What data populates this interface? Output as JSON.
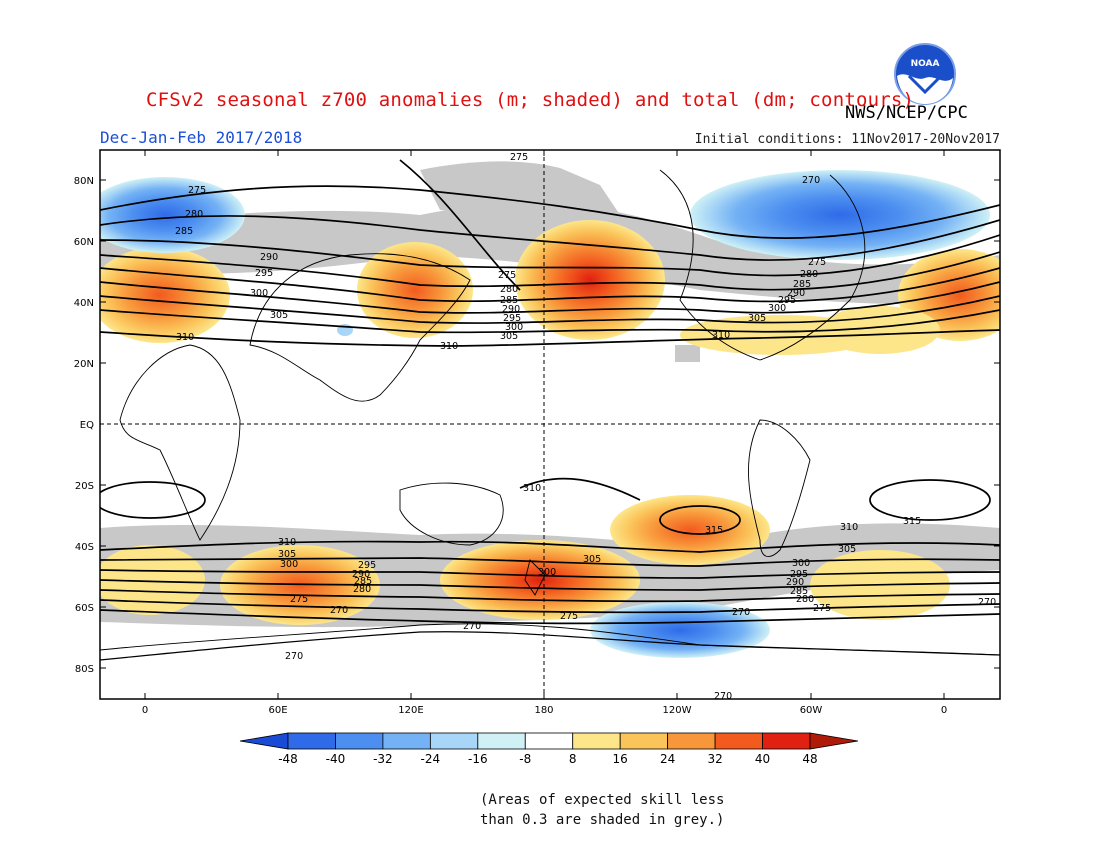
{
  "title": "CFSv2 seasonal z700 anomalies (m; shaded) and total (dm; contours)",
  "agency": "NWS/NCEP/CPC",
  "season": "Dec-Jan-Feb 2017/2018",
  "initial_conditions": "Initial conditions: 11Nov2017-20Nov2017",
  "logo_text": "NOAA",
  "lat_labels": [
    "80N",
    "60N",
    "40N",
    "20N",
    "EQ",
    "20S",
    "40S",
    "60S",
    "80S"
  ],
  "lon_labels": [
    "0",
    "60E",
    "120E",
    "180",
    "120W",
    "60W",
    "0"
  ],
  "contour_labels": [
    "270",
    "275",
    "280",
    "285",
    "290",
    "295",
    "300",
    "305",
    "310",
    "315"
  ],
  "colorbar": {
    "ticks": [
      "-48",
      "-40",
      "-32",
      "-24",
      "-16",
      "-8",
      "8",
      "16",
      "24",
      "32",
      "40",
      "48"
    ],
    "colors": [
      "#1a4bd6",
      "#2f6be8",
      "#4d8ff0",
      "#74b2f5",
      "#a8d6f8",
      "#cff1f6",
      "#ffffff",
      "#fde68a",
      "#fbc45a",
      "#f8963a",
      "#f25a1e",
      "#e02010",
      "#b01a08"
    ]
  },
  "notes": [
    "(Areas of expected skill less",
    "than 0.3 are shaded in grey.)"
  ],
  "colors": {
    "title": "#e01010",
    "season": "#1d4fd6",
    "skill_mask": "#c8c8c8"
  }
}
